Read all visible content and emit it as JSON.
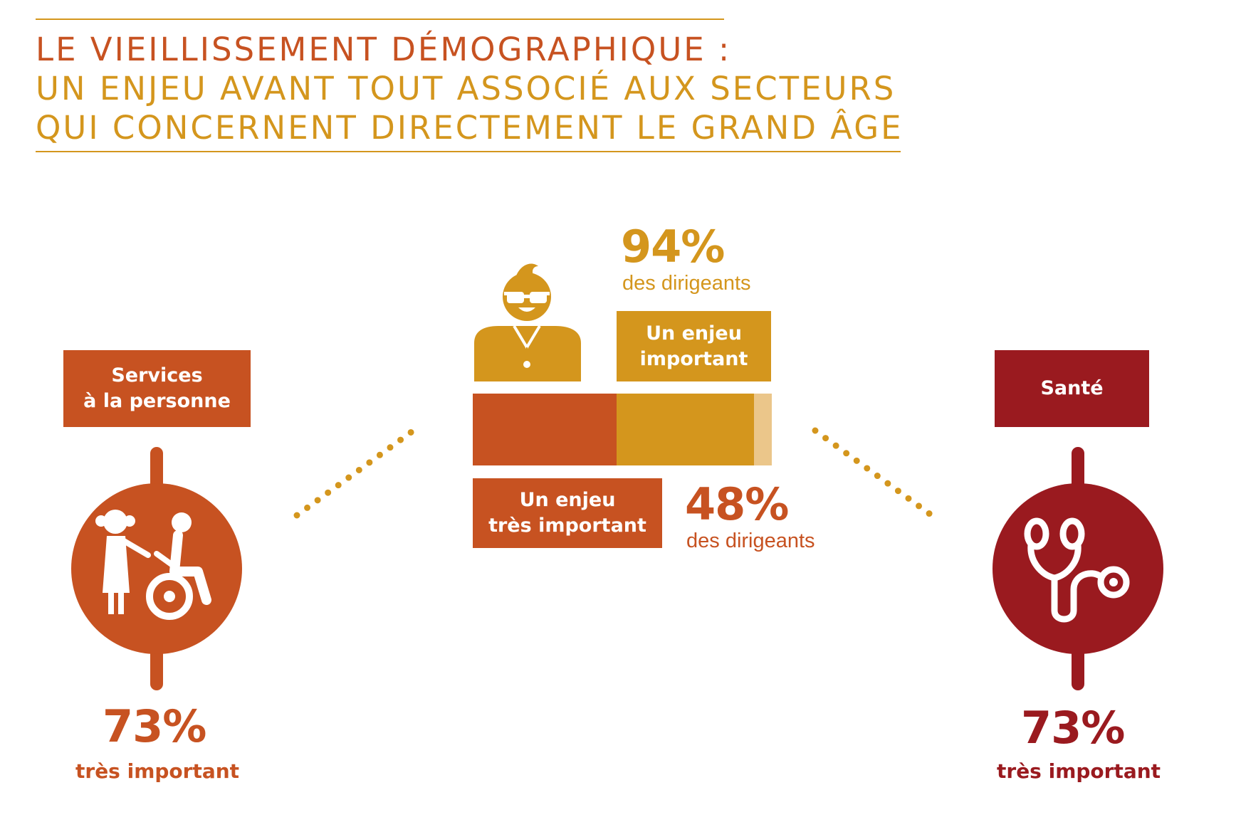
{
  "colors": {
    "orange": "#c75221",
    "gold": "#d4961d",
    "light_gold": "#ebc68a",
    "dark_red": "#9a1a1f"
  },
  "header": {
    "line1": "LE VIEILLISSEMENT DÉMOGRAPHIQUE :",
    "line2": "UN ENJEU AVANT TOUT ASSOCIÉ AUX SECTEURS",
    "line3": "QUI CONCERNENT DIRECTEMENT LE GRAND ÂGE"
  },
  "left": {
    "label": "Services\nà la personne",
    "percent": "73%",
    "caption": "très important",
    "icon": "caregiver-wheelchair-icon"
  },
  "right": {
    "label": "Santé",
    "percent": "73%",
    "caption": "très important",
    "icon": "stethoscope-icon"
  },
  "center": {
    "icon": "executive-person-icon",
    "top_percent": "94%",
    "top_caption": "des dirigeants",
    "important_label": "Un enjeu\nimportant",
    "very_important_label": "Un enjeu\ntrès important",
    "bottom_percent": "48%",
    "bottom_caption": "des dirigeants",
    "bar": {
      "very_important_pct": 48,
      "important_pct": 46,
      "other_pct": 6
    }
  }
}
